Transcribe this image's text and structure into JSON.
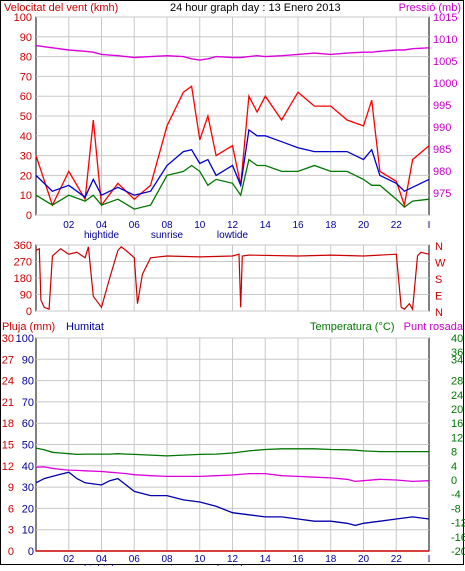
{
  "title": "24 hour graph day : 13 Enero 2013",
  "labels": {
    "top_left": "Velocitat del vent (kmh)",
    "top_right": "Pressió (mb)",
    "bottom_left_a": "Pluja (mm)",
    "bottom_left_b": "Humitat",
    "bottom_right_a": "Temperatura (°C)",
    "bottom_right_b": "Punt rosada"
  },
  "colors": {
    "wind_gust": "#ff0000",
    "wind_avg": "#0000cc",
    "wind_low": "#007700",
    "pressure": "#dd00dd",
    "direction": "#cc0000",
    "humidity": "#0000aa",
    "temperature": "#007700",
    "dewpoint": "#dd00dd",
    "rain": "#cc0000",
    "grid": "#c8c8c8",
    "red_axis": "#cc0000",
    "green_axis": "#007700",
    "blue_axis": "#000099",
    "magenta_axis": "#cc00cc"
  },
  "x_labels": [
    {
      "t": "02",
      "sub": "",
      "h": 2
    },
    {
      "t": "04",
      "sub": "hightide",
      "h": 4
    },
    {
      "t": "06",
      "sub": "",
      "h": 6
    },
    {
      "t": "08",
      "sub": "sunrise",
      "h": 8
    },
    {
      "t": "10",
      "sub": "",
      "h": 10
    },
    {
      "t": "12",
      "sub": "lowtide",
      "h": 12
    },
    {
      "t": "14",
      "sub": "",
      "h": 14
    },
    {
      "t": "16",
      "sub": "",
      "h": 16
    },
    {
      "t": "18",
      "sub": "",
      "h": 18
    },
    {
      "t": "20",
      "sub": "",
      "h": 20
    },
    {
      "t": "22",
      "sub": "",
      "h": 22
    },
    {
      "t": "I",
      "sub": "",
      "h": 24
    }
  ],
  "chart_data": [
    {
      "type": "line",
      "title": "24 hour graph day : 13 Enero 2013",
      "ylabel": "Velocitat del vent (kmh)",
      "y2label": "Pressió (mb)",
      "ylim": [
        0,
        100
      ],
      "y2lim": [
        970,
        1015
      ],
      "y_ticks": [
        0,
        10,
        20,
        30,
        40,
        50,
        60,
        70,
        80,
        90,
        100
      ],
      "y2_ticks": [
        975,
        980,
        985,
        990,
        995,
        1000,
        1005,
        1010,
        1015
      ],
      "x_hours": [
        0,
        1,
        2,
        3,
        3.5,
        4,
        5,
        6,
        7,
        8,
        9,
        9.5,
        10,
        10.5,
        11,
        12,
        12.5,
        13,
        13.5,
        14,
        15,
        16,
        17,
        18,
        19,
        20,
        20.5,
        21,
        22,
        22.5,
        23,
        24
      ],
      "series": [
        {
          "values": [
            30,
            5,
            22,
            8,
            48,
            5,
            16,
            8,
            15,
            45,
            62,
            65,
            38,
            50,
            30,
            35,
            15,
            60,
            52,
            60,
            48,
            62,
            55,
            55,
            48,
            45,
            58,
            22,
            17,
            5,
            28,
            35
          ]
        },
        {
          "values": [
            20,
            12,
            15,
            9,
            18,
            10,
            14,
            10,
            12,
            25,
            32,
            33,
            26,
            28,
            20,
            25,
            15,
            43,
            40,
            40,
            37,
            34,
            32,
            32,
            32,
            28,
            33,
            20,
            16,
            12,
            14,
            18
          ]
        },
        {
          "values": [
            10,
            5,
            10,
            7,
            10,
            5,
            8,
            3,
            5,
            20,
            22,
            25,
            22,
            15,
            18,
            16,
            10,
            28,
            25,
            25,
            22,
            22,
            25,
            22,
            22,
            18,
            15,
            15,
            8,
            4,
            7,
            8
          ]
        },
        {
          "values": [
            1008.5,
            1008,
            1007.5,
            1007.2,
            1007,
            1006.5,
            1006.2,
            1005.8,
            1006,
            1006.2,
            1006,
            1005.5,
            1005.2,
            1005.5,
            1006,
            1005.8,
            1005.8,
            1006,
            1006.2,
            1006,
            1006.2,
            1006.5,
            1006.8,
            1006.5,
            1006.8,
            1007,
            1007,
            1007.2,
            1007.5,
            1007.5,
            1007.8,
            1008
          ]
        }
      ]
    },
    {
      "type": "line",
      "ylim": [
        0,
        360
      ],
      "y_ticks": [
        0,
        90,
        180,
        270,
        360
      ],
      "y2_ticks_text": [
        "N",
        "W",
        "S",
        "E",
        "N"
      ],
      "x_hours": [
        0,
        0.2,
        0.3,
        0.5,
        0.8,
        1,
        1.5,
        2,
        2.5,
        3,
        3.2,
        3.5,
        4,
        4.5,
        5,
        5.2,
        5.5,
        6,
        6.2,
        6.5,
        7,
        8,
        10,
        12,
        12.4,
        12.5,
        12.6,
        13,
        16,
        18,
        20,
        22,
        22.3,
        22.5,
        22.8,
        23,
        23.3,
        23.5,
        24
      ],
      "series": [
        {
          "values": [
            330,
            340,
            60,
            20,
            10,
            300,
            340,
            310,
            320,
            290,
            350,
            80,
            20,
            180,
            330,
            350,
            330,
            290,
            40,
            200,
            290,
            300,
            295,
            300,
            310,
            20,
            300,
            305,
            300,
            305,
            300,
            310,
            20,
            10,
            40,
            10,
            300,
            320,
            310
          ]
        }
      ]
    },
    {
      "type": "line",
      "ylabel": "Pluja (mm) / Humitat",
      "y2label": "Temperatura (°C) / Punt rosada",
      "ylim": [
        0,
        100
      ],
      "y_ticks_pluja": [
        0,
        3,
        6,
        9,
        12,
        15,
        18,
        21,
        24,
        27,
        30
      ],
      "y_ticks_humitat": [
        0,
        10,
        20,
        30,
        40,
        50,
        60,
        70,
        80,
        90,
        100
      ],
      "y2lim": [
        -20,
        40
      ],
      "y2_ticks": [
        -20,
        -16,
        -12,
        -8,
        -4,
        0,
        4,
        8,
        12,
        16,
        20,
        24,
        28,
        34,
        36,
        40
      ],
      "x_hours": [
        0,
        0.5,
        1,
        1.5,
        2,
        2.5,
        3,
        4,
        4.5,
        5,
        5.5,
        6,
        7,
        8,
        9,
        10,
        11,
        12,
        13,
        14,
        15,
        16,
        17,
        18,
        19,
        19.5,
        20,
        21,
        22,
        23,
        24
      ],
      "series": [
        {
          "values": [
            32,
            34,
            35,
            36,
            37,
            34,
            32,
            31,
            33,
            34,
            31,
            28,
            26,
            26,
            24,
            23,
            21,
            18,
            17,
            16,
            16,
            15,
            14,
            14,
            13,
            12,
            13,
            14,
            15,
            16,
            15
          ]
        },
        {
          "values": [
            9,
            8.5,
            7.8,
            7.6,
            7.4,
            7.2,
            7.3,
            7.3,
            7.3,
            7.4,
            7.3,
            7.2,
            7.0,
            6.8,
            7.0,
            7.2,
            7.3,
            7.6,
            8.2,
            8.6,
            8.8,
            8.8,
            8.8,
            8.6,
            8.5,
            8.4,
            8.2,
            8.0,
            8.0,
            8.0,
            8.0
          ]
        },
        {
          "values": [
            3.6,
            3.7,
            3.3,
            3.0,
            2.8,
            2.7,
            2.6,
            2.4,
            2.2,
            2.0,
            1.8,
            1.5,
            1.2,
            1.0,
            1.0,
            1.0,
            1.2,
            1.4,
            1.8,
            1.8,
            1.2,
            1.0,
            0.8,
            0.6,
            0.2,
            -0.4,
            -0.2,
            0.2,
            0.0,
            -0.4,
            -0.2
          ]
        },
        {
          "values": [
            0,
            0,
            0,
            0,
            0,
            0,
            0,
            0,
            0,
            0,
            0,
            0,
            0,
            0,
            0,
            0,
            0,
            0,
            0,
            0,
            0,
            0,
            0,
            0,
            0,
            0,
            0,
            0,
            0,
            0,
            0
          ]
        }
      ]
    }
  ]
}
